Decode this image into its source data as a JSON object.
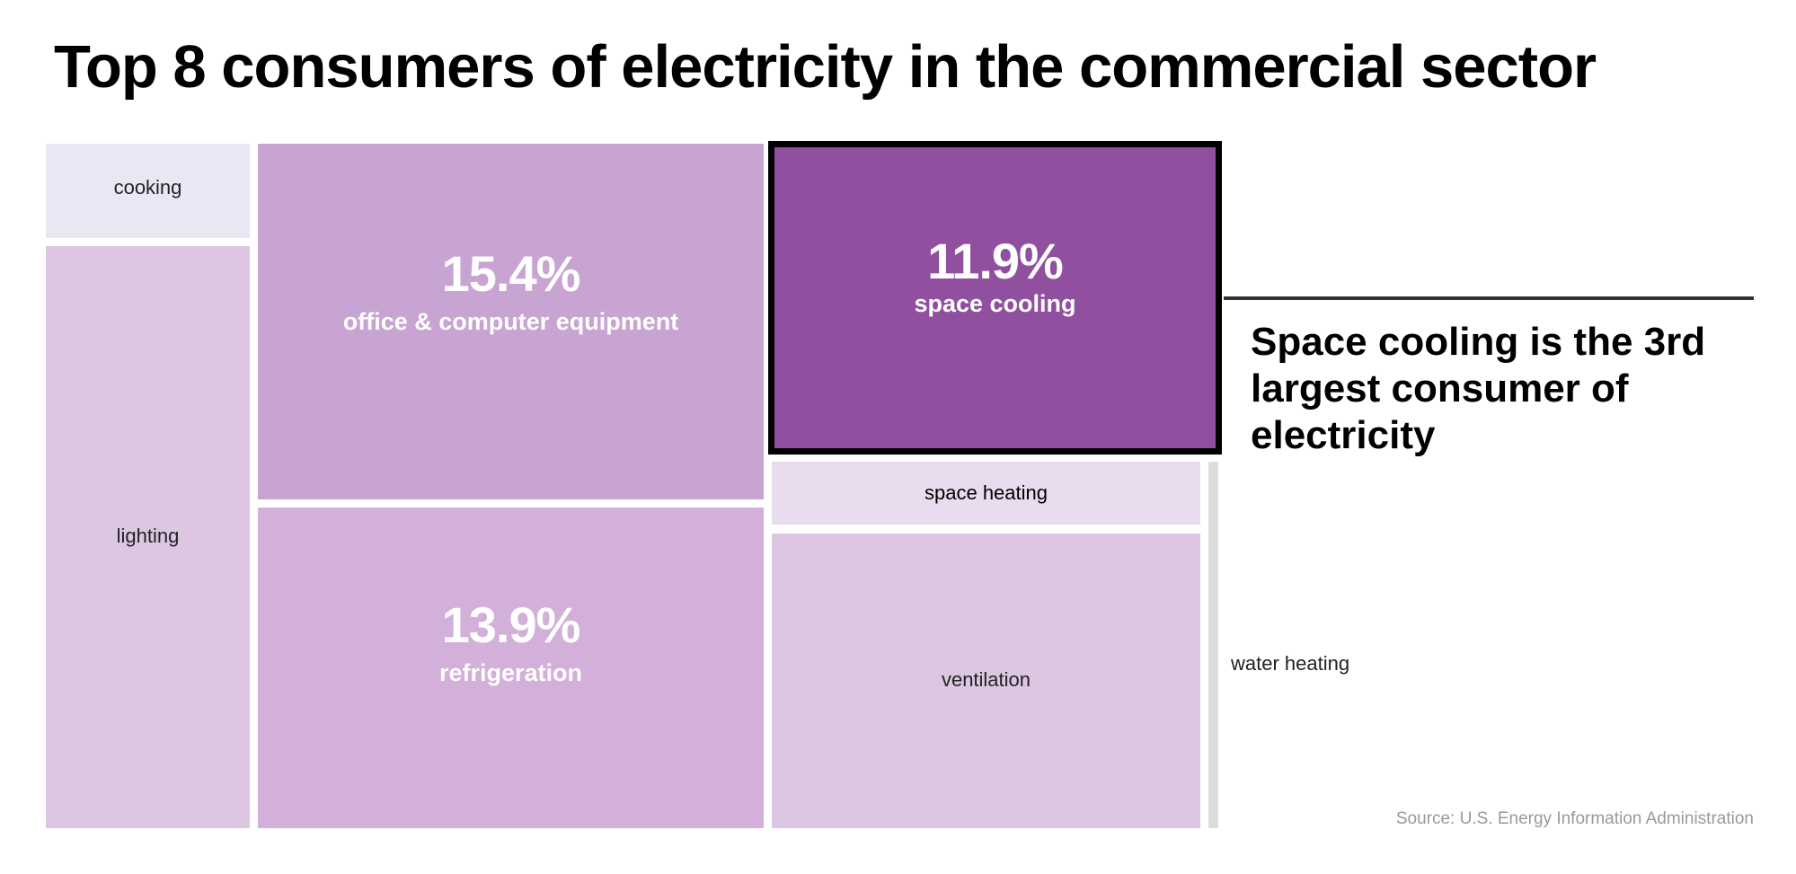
{
  "title": "Top 8 consumers of electricity in the commercial sector",
  "callout": "Space cooling is the 3rd largest consumer of electricity",
  "source": "Source: U.S. Energy Information Administration",
  "colors": {
    "cooking": "#ebe6f4",
    "lighting": "#dcc6e2",
    "office": "#c8a4d2",
    "refrigeration": "#d2b0da",
    "space_cooling": "#914f9f",
    "space_heating": "#e8dcee",
    "ventilation": "#dcc6e2",
    "water_heating": "#dddddd"
  },
  "chart_data": {
    "type": "treemap",
    "title": "Top 8 consumers of electricity in the commercial sector",
    "highlight": "space cooling",
    "items": [
      {
        "key": "cooking",
        "label": "cooking",
        "value": null
      },
      {
        "key": "lighting",
        "label": "lighting",
        "value": null
      },
      {
        "key": "office",
        "label": "office & computer equipment",
        "value": 15.4,
        "value_label": "15.4%"
      },
      {
        "key": "refrigeration",
        "label": "refrigeration",
        "value": 13.9,
        "value_label": "13.9%"
      },
      {
        "key": "space_cooling",
        "label": "space cooling",
        "value": 11.9,
        "value_label": "11.9%"
      },
      {
        "key": "space_heating",
        "label": "space heating",
        "value": null
      },
      {
        "key": "ventilation",
        "label": "ventilation",
        "value": null
      },
      {
        "key": "water_heating",
        "label": "water heating",
        "value": null
      }
    ]
  }
}
